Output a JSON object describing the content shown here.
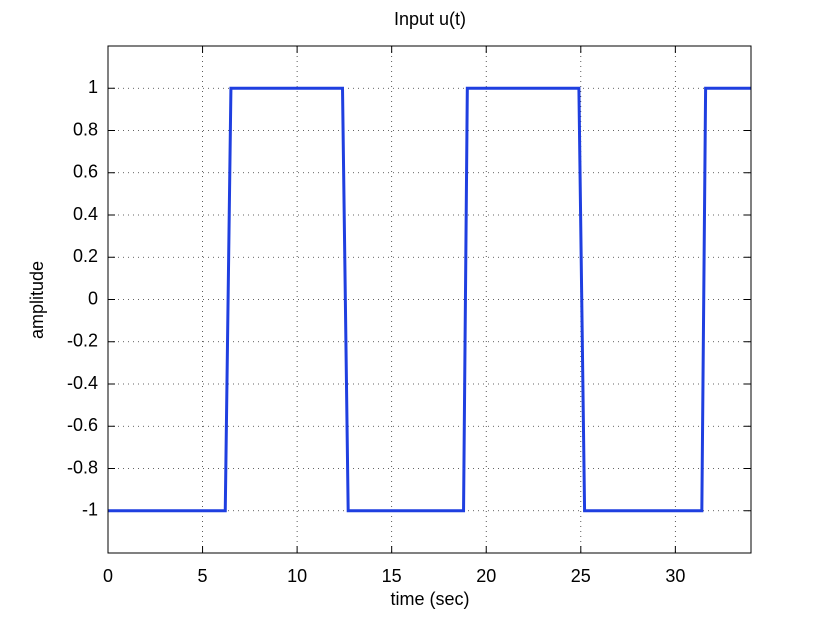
{
  "chart_data": {
    "type": "line",
    "title": "Input u(t)",
    "x_label": "time (sec)",
    "y_label": "amplitude",
    "series": [
      {
        "color": "#1f3fe0",
        "x": [
          0,
          6.2,
          6.5,
          12.4,
          12.7,
          18.8,
          19.0,
          24.9,
          25.2,
          31.4,
          31.6,
          34
        ],
        "values": [
          -1,
          -1,
          1,
          1,
          -1,
          -1,
          1,
          1,
          -1,
          -1,
          1,
          1
        ]
      }
    ],
    "xlim": [
      0,
      34
    ],
    "xticks": [
      0,
      5,
      10,
      15,
      20,
      25,
      30
    ],
    "ylim": [
      -1.2,
      1.2
    ],
    "yticks": [
      -1,
      -0.8,
      -0.6,
      -0.4,
      -0.2,
      0,
      0.2,
      0.4,
      0.6,
      0.8,
      1
    ],
    "grid": true
  }
}
